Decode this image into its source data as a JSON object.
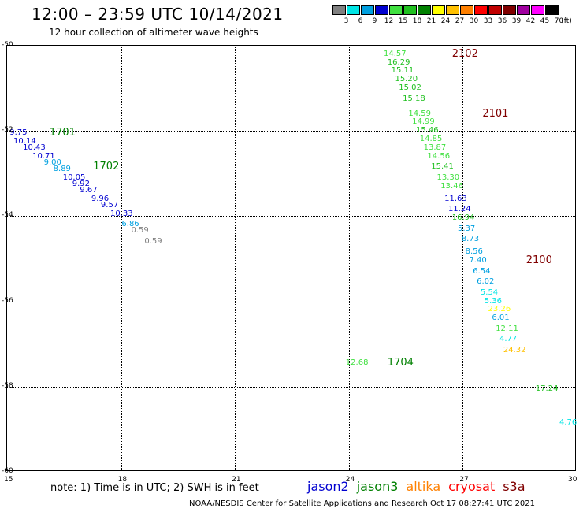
{
  "title": "12:00 – 23:59 UTC 10/14/2021",
  "subtitle": "12 hour collection of altimeter wave heights",
  "colorbar": {
    "unit": "(ft)",
    "bins": [
      {
        "label": "3",
        "color": "#808080"
      },
      {
        "label": "6",
        "color": "#00e5e5"
      },
      {
        "label": "9",
        "color": "#00a0e0"
      },
      {
        "label": "12",
        "color": "#0000d0"
      },
      {
        "label": "15",
        "color": "#40e040"
      },
      {
        "label": "18",
        "color": "#20c020"
      },
      {
        "label": "21",
        "color": "#008000"
      },
      {
        "label": "24",
        "color": "#ffff00"
      },
      {
        "label": "27",
        "color": "#ffc000"
      },
      {
        "label": "30",
        "color": "#ff8000"
      },
      {
        "label": "33",
        "color": "#ff0000"
      },
      {
        "label": "36",
        "color": "#c00000"
      },
      {
        "label": "39",
        "color": "#800000"
      },
      {
        "label": "42",
        "color": "#a000a0"
      },
      {
        "label": "45",
        "color": "#ff00ff"
      },
      {
        "label": "70",
        "color": "#000000"
      }
    ]
  },
  "axes": {
    "x_ticks": [
      "15",
      "18",
      "21",
      "24",
      "27",
      "30"
    ],
    "y_ticks": [
      "-50",
      "-52",
      "-54",
      "-56",
      "-58",
      "-60"
    ]
  },
  "passes": [
    {
      "label": "2102",
      "color": "#800000",
      "lon": 26.8,
      "lat": -50.2
    },
    {
      "label": "2101",
      "color": "#800000",
      "lon": 27.6,
      "lat": -51.6
    },
    {
      "label": "1701",
      "color": "#008000",
      "lon": 16.2,
      "lat": -52.05
    },
    {
      "label": "1702",
      "color": "#008000",
      "lon": 17.35,
      "lat": -52.85
    },
    {
      "label": "2100",
      "color": "#800000",
      "lon": 28.75,
      "lat": -55.05
    },
    {
      "label": "1704",
      "color": "#008000",
      "lon": 25.1,
      "lat": -57.45
    }
  ],
  "wave_heights": [
    {
      "text": "14.57",
      "color": "#40e040",
      "lon": 25.0,
      "lat": -50.2
    },
    {
      "text": "16.29",
      "color": "#20c020",
      "lon": 25.1,
      "lat": -50.4
    },
    {
      "text": "15.11",
      "color": "#20c020",
      "lon": 25.2,
      "lat": -50.6
    },
    {
      "text": "15.20",
      "color": "#20c020",
      "lon": 25.3,
      "lat": -50.8
    },
    {
      "text": "15.02",
      "color": "#20c020",
      "lon": 25.4,
      "lat": -51.0
    },
    {
      "text": "15.18",
      "color": "#20c020",
      "lon": 25.5,
      "lat": -51.25
    },
    {
      "text": "14.59",
      "color": "#40e040",
      "lon": 25.65,
      "lat": -51.6
    },
    {
      "text": "14.99",
      "color": "#40e040",
      "lon": 25.75,
      "lat": -51.8
    },
    {
      "text": "15.46",
      "color": "#20c020",
      "lon": 25.85,
      "lat": -52.0
    },
    {
      "text": "14.85",
      "color": "#40e040",
      "lon": 25.95,
      "lat": -52.2
    },
    {
      "text": "13.87",
      "color": "#40e040",
      "lon": 26.05,
      "lat": -52.4
    },
    {
      "text": "14.56",
      "color": "#40e040",
      "lon": 26.15,
      "lat": -52.6
    },
    {
      "text": "15.41",
      "color": "#20c020",
      "lon": 26.25,
      "lat": -52.85
    },
    {
      "text": "13.30",
      "color": "#40e040",
      "lon": 26.4,
      "lat": -53.1
    },
    {
      "text": "13.46",
      "color": "#40e040",
      "lon": 26.5,
      "lat": -53.3
    },
    {
      "text": "11.63",
      "color": "#0000d0",
      "lon": 26.6,
      "lat": -53.6
    },
    {
      "text": "11.24",
      "color": "#0000d0",
      "lon": 26.7,
      "lat": -53.85
    },
    {
      "text": "16.94",
      "color": "#20c020",
      "lon": 26.8,
      "lat": -54.05
    },
    {
      "text": "5.37",
      "color": "#00a0e0",
      "lon": 26.95,
      "lat": -54.3
    },
    {
      "text": "8.73",
      "color": "#00a0e0",
      "lon": 27.05,
      "lat": -54.55
    },
    {
      "text": "8.56",
      "color": "#00a0e0",
      "lon": 27.15,
      "lat": -54.85
    },
    {
      "text": "7.40",
      "color": "#00a0e0",
      "lon": 27.25,
      "lat": -55.05
    },
    {
      "text": "6.54",
      "color": "#00a0e0",
      "lon": 27.35,
      "lat": -55.3
    },
    {
      "text": "6.02",
      "color": "#00a0e0",
      "lon": 27.45,
      "lat": -55.55
    },
    {
      "text": "5.54",
      "color": "#00e5e5",
      "lon": 27.55,
      "lat": -55.8
    },
    {
      "text": "5.36",
      "color": "#00e5e5",
      "lon": 27.65,
      "lat": -56.0
    },
    {
      "text": "23.26",
      "color": "#ffff00",
      "lon": 27.75,
      "lat": -56.2
    },
    {
      "text": "6.01",
      "color": "#00a0e0",
      "lon": 27.85,
      "lat": -56.4
    },
    {
      "text": "12.11",
      "color": "#40e040",
      "lon": 27.95,
      "lat": -56.65
    },
    {
      "text": "4.77",
      "color": "#00e5e5",
      "lon": 28.05,
      "lat": -56.9
    },
    {
      "text": "24.32",
      "color": "#ffc000",
      "lon": 28.15,
      "lat": -57.15
    },
    {
      "text": "12.68",
      "color": "#40e040",
      "lon": 24.0,
      "lat": -57.45
    },
    {
      "text": "17.24",
      "color": "#20c020",
      "lon": 29.0,
      "lat": -58.05
    },
    {
      "text": "4.76",
      "color": "#00e5e5",
      "lon": 29.8,
      "lat": -58.85
    },
    {
      "text": "9.75",
      "color": "#0000d0",
      "lon": 15.15,
      "lat": -52.05
    },
    {
      "text": "10.14",
      "color": "#0000d0",
      "lon": 15.25,
      "lat": -52.25
    },
    {
      "text": "10.43",
      "color": "#0000d0",
      "lon": 15.5,
      "lat": -52.4
    },
    {
      "text": "10.71",
      "color": "#0000d0",
      "lon": 15.75,
      "lat": -52.6
    },
    {
      "text": "9.00",
      "color": "#00a0e0",
      "lon": 16.05,
      "lat": -52.75
    },
    {
      "text": "8.89",
      "color": "#00a0e0",
      "lon": 16.3,
      "lat": -52.9
    },
    {
      "text": "10.05",
      "color": "#0000d0",
      "lon": 16.55,
      "lat": -53.1
    },
    {
      "text": "9.92",
      "color": "#0000d0",
      "lon": 16.8,
      "lat": -53.25
    },
    {
      "text": "9.67",
      "color": "#0000d0",
      "lon": 17.0,
      "lat": -53.4
    },
    {
      "text": "9.96",
      "color": "#0000d0",
      "lon": 17.3,
      "lat": -53.6
    },
    {
      "text": "9.57",
      "color": "#0000d0",
      "lon": 17.55,
      "lat": -53.75
    },
    {
      "text": "10.33",
      "color": "#0000d0",
      "lon": 17.8,
      "lat": -53.95
    },
    {
      "text": "6.86",
      "color": "#00a0e0",
      "lon": 18.1,
      "lat": -54.2
    },
    {
      "text": "0.59",
      "color": "#808080",
      "lon": 18.35,
      "lat": -54.35
    },
    {
      "text": "0.59",
      "color": "#808080",
      "lon": 18.7,
      "lat": -54.6
    }
  ],
  "note": "note:  1) Time is in UTC;  2) SWH is in feet",
  "legend": [
    {
      "name": "jason2",
      "color": "#0000d0"
    },
    {
      "name": "jason3",
      "color": "#008000"
    },
    {
      "name": "altika",
      "color": "#ff8000"
    },
    {
      "name": "cryosat",
      "color": "#ff0000"
    },
    {
      "name": "s3a",
      "color": "#800000"
    }
  ],
  "footer": "NOAA/NESDIS Center for Satellite Applications and Research    Oct 17 08:27:41 UTC 2021"
}
